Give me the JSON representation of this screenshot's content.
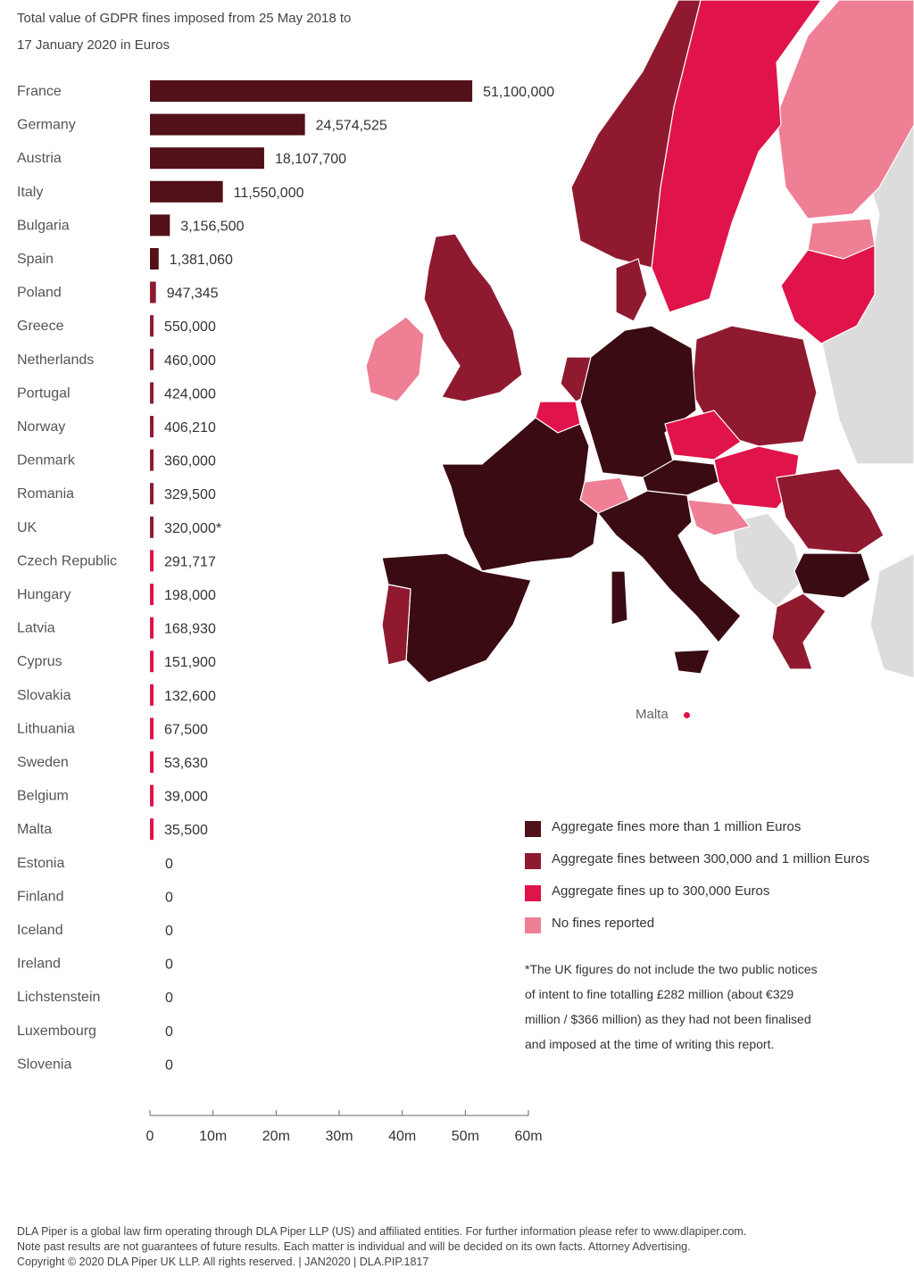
{
  "title_line1": "Total value of GDPR fines imposed from 25 May 2018 to",
  "title_line2": "17 January 2020 in Euros",
  "colors": {
    "more_than_1m": "#521018",
    "between_300k_1m": "#8f1a30",
    "up_to_300k": "#e0134a",
    "no_fines": "#ef7f95",
    "non_eu": "#dcdcdc"
  },
  "chart_data": {
    "type": "bar",
    "orientation": "horizontal",
    "categories": [
      "France",
      "Germany",
      "Austria",
      "Italy",
      "Bulgaria",
      "Spain",
      "Poland",
      "Greece",
      "Netherlands",
      "Portugal",
      "Norway",
      "Denmark",
      "Romania",
      "UK",
      "Czech Republic",
      "Hungary",
      "Latvia",
      "Cyprus",
      "Slovakia",
      "Lithuania",
      "Sweden",
      "Belgium",
      "Malta",
      "Estonia",
      "Finland",
      "Iceland",
      "Ireland",
      "Lichstenstein",
      "Luxembourg",
      "Slovenia"
    ],
    "values": [
      51100000,
      24574525,
      18107700,
      11550000,
      3156500,
      1381060,
      947345,
      550000,
      460000,
      424000,
      406210,
      360000,
      329500,
      320000,
      291717,
      198000,
      168930,
      151900,
      132600,
      67500,
      53630,
      39000,
      35500,
      0,
      0,
      0,
      0,
      0,
      0,
      0
    ],
    "value_labels": [
      "51,100,000",
      "24,574,525",
      "18,107,700",
      "11,550,000",
      "3,156,500",
      "1,381,060",
      "947,345",
      "550,000",
      "460,000",
      "424,000",
      "406,210",
      "360,000",
      "329,500",
      "320,000*",
      "291,717",
      "198,000",
      "168,930",
      "151,900",
      "132,600",
      "67,500",
      "53,630",
      "39,000",
      "35,500",
      "0",
      "0",
      "0",
      "0",
      "0",
      "0",
      "0"
    ],
    "xlim": [
      0,
      60000000
    ],
    "x_ticks": [
      0,
      10000000,
      20000000,
      30000000,
      40000000,
      50000000,
      60000000
    ],
    "x_tick_labels": [
      "0",
      "10m",
      "20m",
      "30m",
      "40m",
      "50m",
      "60m"
    ],
    "grid": false
  },
  "legend": [
    {
      "label": "Aggregate fines more than 1 million Euros",
      "color": "#521018"
    },
    {
      "label": "Aggregate fines between 300,000 and 1 million Euros",
      "color": "#8f1a30"
    },
    {
      "label": "Aggregate fines up to 300,000 Euros",
      "color": "#e0134a"
    },
    {
      "label": "No fines reported",
      "color": "#ef7f95"
    }
  ],
  "map": {
    "malta_label": "Malta"
  },
  "footnote": "*The UK figures do not include the two public notices of intent to fine totalling £282 million (about €329 million / $366 million) as they had not been finalised and imposed at the time of writing this report.",
  "footer": {
    "line1": "DLA Piper is a global law firm operating through DLA Piper LLP (US) and affiliated entities. For further information please refer to www.dlapiper.com.",
    "line2": "Note past results are not guarantees of future results. Each matter is individual and will be decided on its own facts. Attorney Advertising.",
    "line3": "Copyright © 2020 DLA Piper UK LLP.  All rights reserved.  | JAN2020  |  DLA.PIP.1817"
  }
}
